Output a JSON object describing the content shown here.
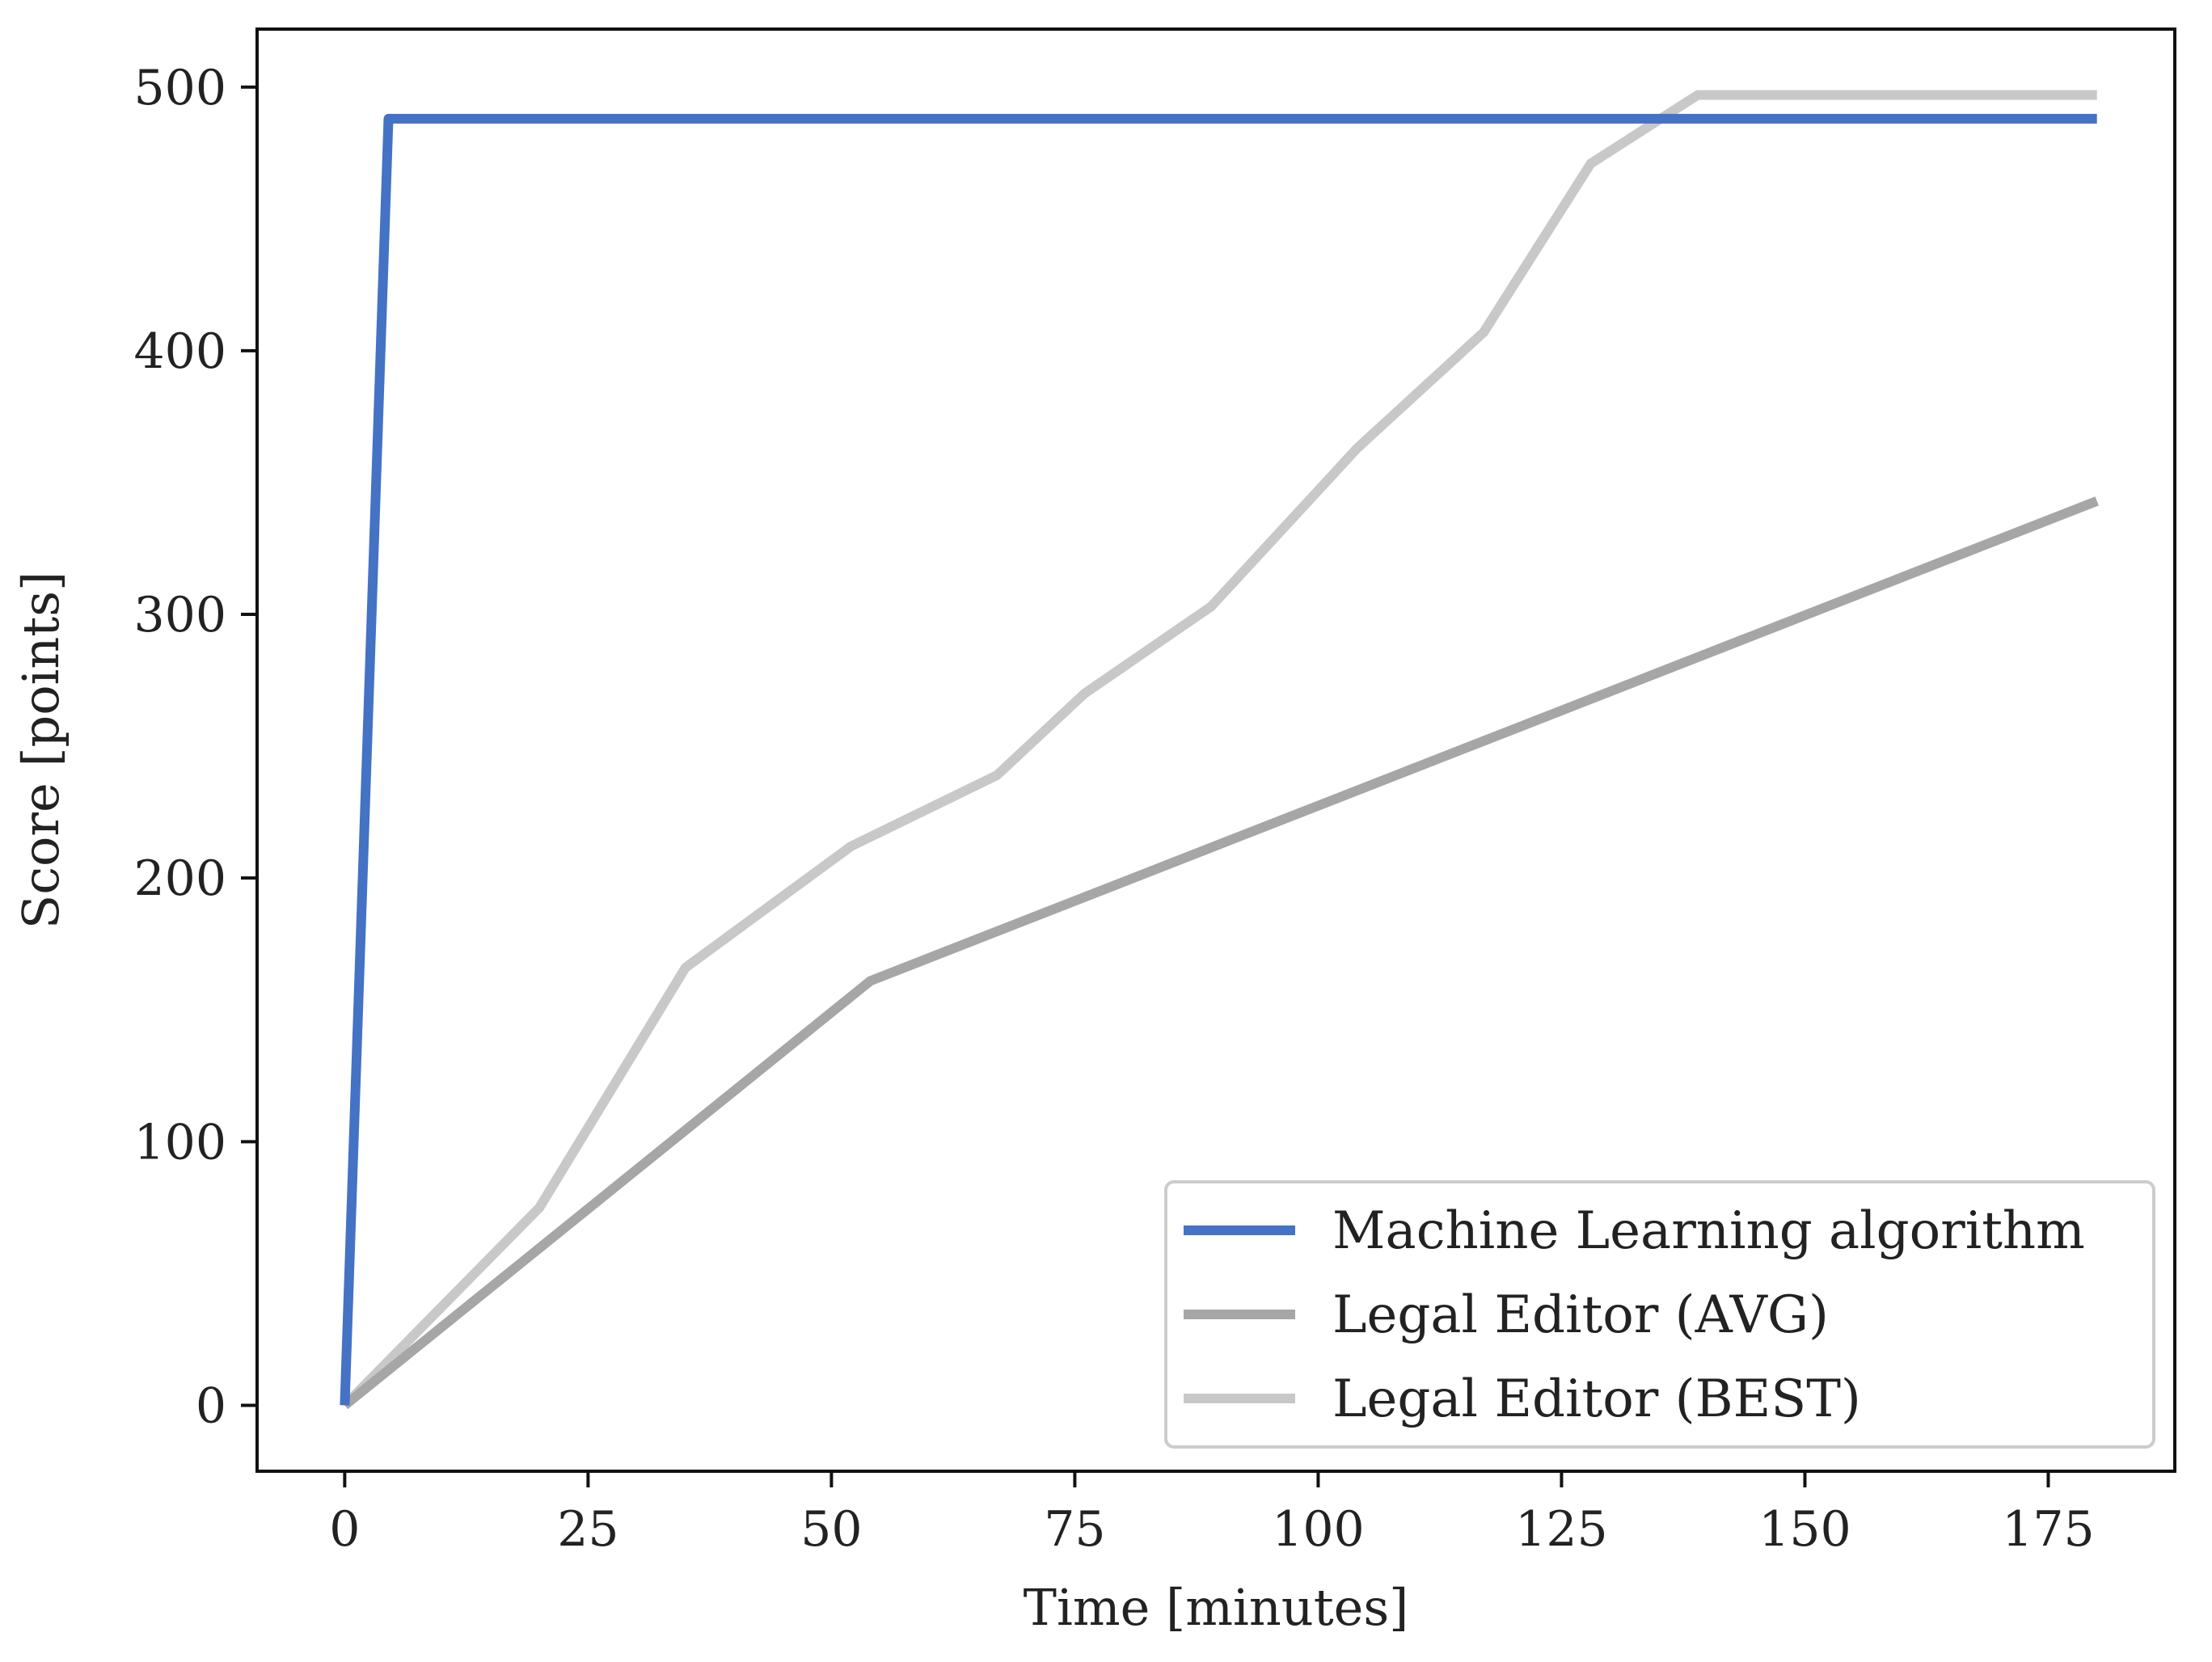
{
  "chart_data": {
    "type": "line",
    "title": "",
    "xlabel": "Time [minutes]",
    "ylabel": "Score [points]",
    "xlim": [
      -9,
      188
    ],
    "ylim": [
      -25,
      522
    ],
    "x_ticks": [
      0,
      25,
      50,
      75,
      100,
      125,
      150,
      175
    ],
    "y_ticks": [
      0,
      100,
      200,
      300,
      400,
      500
    ],
    "grid": false,
    "legend_position": "lower-right",
    "series": [
      {
        "name": "Legal Editor (BEST)",
        "color": "#c8c8c8",
        "x": [
          0,
          20,
          35,
          52,
          67,
          76,
          89,
          104,
          117,
          128,
          139,
          180
        ],
        "y": [
          0,
          75,
          166,
          212,
          239,
          270,
          303,
          363,
          407,
          471,
          497,
          497
        ]
      },
      {
        "name": "Legal Editor (AVG)",
        "color": "#a6a6a6",
        "x": [
          0,
          54,
          180
        ],
        "y": [
          0,
          161,
          343
        ]
      },
      {
        "name": "Machine Learning algorithm",
        "color": "#4472c4",
        "x": [
          0,
          4.5,
          180
        ],
        "y": [
          0,
          488,
          488
        ]
      }
    ],
    "legend_order": [
      "Machine Learning algorithm",
      "Legal Editor (AVG)",
      "Legal Editor (BEST)"
    ]
  }
}
